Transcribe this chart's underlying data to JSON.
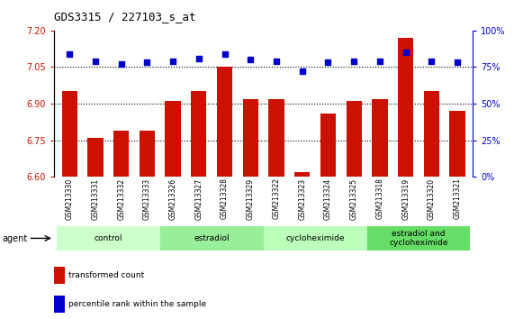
{
  "title": "GDS3315 / 227103_s_at",
  "samples": [
    "GSM213330",
    "GSM213331",
    "GSM213332",
    "GSM213333",
    "GSM213326",
    "GSM213327",
    "GSM213328",
    "GSM213329",
    "GSM213322",
    "GSM213323",
    "GSM213324",
    "GSM213325",
    "GSM213318",
    "GSM213319",
    "GSM213320",
    "GSM213321"
  ],
  "bar_values": [
    6.95,
    6.76,
    6.79,
    6.79,
    6.91,
    6.95,
    7.05,
    6.92,
    6.92,
    6.62,
    6.86,
    6.91,
    6.92,
    7.17,
    6.95,
    6.87
  ],
  "percentile_values": [
    84,
    79,
    77,
    78,
    79,
    81,
    84,
    80,
    79,
    72,
    78,
    79,
    79,
    85,
    79,
    78
  ],
  "bar_color": "#CC1100",
  "dot_color": "#0000CC",
  "ylim_left": [
    6.6,
    7.2
  ],
  "ylim_right": [
    0,
    100
  ],
  "yticks_left": [
    6.6,
    6.75,
    6.9,
    7.05,
    7.2
  ],
  "yticks_right": [
    0,
    25,
    50,
    75,
    100
  ],
  "hlines": [
    6.75,
    6.9,
    7.05
  ],
  "groups": [
    {
      "label": "control",
      "indices": [
        0,
        1,
        2,
        3
      ],
      "color": "#ccffcc"
    },
    {
      "label": "estradiol",
      "indices": [
        4,
        5,
        6,
        7
      ],
      "color": "#99ee99"
    },
    {
      "label": "cycloheximide",
      "indices": [
        8,
        9,
        10,
        11
      ],
      "color": "#bbffbb"
    },
    {
      "label": "estradiol and\ncycloheximide",
      "indices": [
        12,
        13,
        14,
        15
      ],
      "color": "#66dd66"
    }
  ],
  "legend_labels": [
    "transformed count",
    "percentile rank within the sample"
  ],
  "legend_colors": [
    "#CC1100",
    "#0000CC"
  ],
  "agent_label": "agent",
  "background_color": "#ffffff"
}
